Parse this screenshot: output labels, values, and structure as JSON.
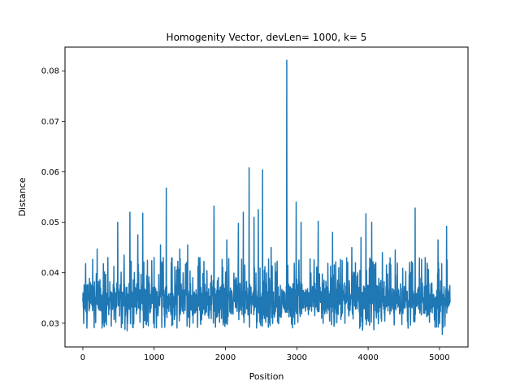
{
  "chart_data": {
    "type": "line",
    "title": "Homogenity Vector, devLen= 1000, k= 5",
    "xlabel": "Position",
    "ylabel": "Distance",
    "xlim": [
      -250,
      5400
    ],
    "ylim": [
      0.0253,
      0.0847
    ],
    "xticks": [
      0,
      1000,
      2000,
      3000,
      4000,
      5000
    ],
    "xtick_labels": [
      "0",
      "1000",
      "2000",
      "3000",
      "4000",
      "5000"
    ],
    "yticks": [
      0.03,
      0.04,
      0.05,
      0.06,
      0.07,
      0.08
    ],
    "ytick_labels": [
      "0.03",
      "0.04",
      "0.05",
      "0.06",
      "0.07",
      "0.08"
    ],
    "grid": false,
    "series": [
      {
        "color": "#1f77b4",
        "x_range": [
          0,
          5150
        ],
        "baseline": 0.0345,
        "band": [
          0.0305,
          0.0395
        ],
        "min": 0.0278,
        "max": 0.0821,
        "peaks": [
          {
            "x": 40,
            "y": 0.0418
          },
          {
            "x": 200,
            "y": 0.0447
          },
          {
            "x": 350,
            "y": 0.043
          },
          {
            "x": 490,
            "y": 0.05
          },
          {
            "x": 580,
            "y": 0.0435
          },
          {
            "x": 660,
            "y": 0.052
          },
          {
            "x": 770,
            "y": 0.0475
          },
          {
            "x": 840,
            "y": 0.0518
          },
          {
            "x": 1000,
            "y": 0.043
          },
          {
            "x": 1090,
            "y": 0.0455
          },
          {
            "x": 1170,
            "y": 0.0568
          },
          {
            "x": 1360,
            "y": 0.0447
          },
          {
            "x": 1470,
            "y": 0.0455
          },
          {
            "x": 1640,
            "y": 0.043
          },
          {
            "x": 1840,
            "y": 0.0532
          },
          {
            "x": 2020,
            "y": 0.0465
          },
          {
            "x": 2180,
            "y": 0.0498
          },
          {
            "x": 2250,
            "y": 0.052
          },
          {
            "x": 2330,
            "y": 0.0608
          },
          {
            "x": 2400,
            "y": 0.051
          },
          {
            "x": 2460,
            "y": 0.0525
          },
          {
            "x": 2520,
            "y": 0.0604
          },
          {
            "x": 2640,
            "y": 0.045
          },
          {
            "x": 2860,
            "y": 0.0821
          },
          {
            "x": 2990,
            "y": 0.054
          },
          {
            "x": 3060,
            "y": 0.05
          },
          {
            "x": 3300,
            "y": 0.0502
          },
          {
            "x": 3500,
            "y": 0.048
          },
          {
            "x": 3770,
            "y": 0.045
          },
          {
            "x": 3900,
            "y": 0.047
          },
          {
            "x": 3970,
            "y": 0.0517
          },
          {
            "x": 4050,
            "y": 0.05
          },
          {
            "x": 4200,
            "y": 0.044
          },
          {
            "x": 4380,
            "y": 0.0445
          },
          {
            "x": 4660,
            "y": 0.0528
          },
          {
            "x": 4800,
            "y": 0.043
          },
          {
            "x": 4980,
            "y": 0.0465
          },
          {
            "x": 5100,
            "y": 0.0492
          }
        ],
        "troughs": [
          {
            "x": 300,
            "y": 0.0293
          },
          {
            "x": 590,
            "y": 0.0288
          },
          {
            "x": 620,
            "y": 0.0285
          },
          {
            "x": 1150,
            "y": 0.0292
          },
          {
            "x": 1860,
            "y": 0.0292
          },
          {
            "x": 2600,
            "y": 0.0292
          },
          {
            "x": 3920,
            "y": 0.0286
          },
          {
            "x": 4080,
            "y": 0.0287
          },
          {
            "x": 4560,
            "y": 0.029
          },
          {
            "x": 5040,
            "y": 0.0278
          }
        ]
      }
    ]
  }
}
